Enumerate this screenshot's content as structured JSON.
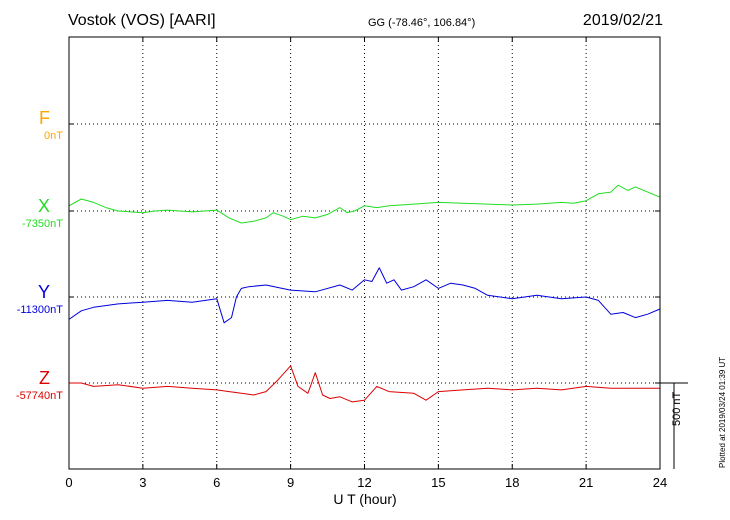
{
  "header": {
    "station": "Vostok (VOS)  [AARI]",
    "coords": "GG (-78.46°, 106.84°)",
    "date": "2019/02/21"
  },
  "xlabel": "U T (hour)",
  "scale_label": "500 nT",
  "footer": "Plotted at 2019/03/24 01:39 UT",
  "chart_data": {
    "type": "line",
    "title": "Vostok (VOS)  [AARI]",
    "xlabel": "U T (hour)",
    "ylabel": "",
    "xlim": [
      0,
      24
    ],
    "xticks": [
      "0",
      "3",
      "6",
      "9",
      "12",
      "15",
      "18",
      "21",
      "24"
    ],
    "scale_bar_nT": 500,
    "grid": true,
    "series": [
      {
        "name": "F",
        "baseline_label": "0nT",
        "color": "#ffa500",
        "x": [],
        "y": []
      },
      {
        "name": "X",
        "baseline_label": "-7350nT",
        "color": "#22dd22",
        "x": [
          0,
          0.5,
          1,
          1.5,
          2,
          3,
          3.5,
          4,
          5,
          6,
          6.5,
          7,
          7.5,
          8,
          8.3,
          8.7,
          9,
          9.5,
          10,
          10.5,
          11,
          11.3,
          11.6,
          12,
          12.5,
          13,
          14,
          15,
          16,
          17,
          18,
          19,
          20,
          20.5,
          21,
          21.5,
          22,
          22.3,
          22.7,
          23,
          23.5,
          24
        ],
        "y": [
          -7320,
          -7280,
          -7300,
          -7330,
          -7350,
          -7360,
          -7350,
          -7345,
          -7355,
          -7345,
          -7390,
          -7420,
          -7410,
          -7390,
          -7360,
          -7380,
          -7400,
          -7380,
          -7390,
          -7370,
          -7330,
          -7360,
          -7350,
          -7320,
          -7330,
          -7320,
          -7310,
          -7300,
          -7305,
          -7310,
          -7315,
          -7310,
          -7300,
          -7305,
          -7290,
          -7250,
          -7240,
          -7200,
          -7230,
          -7210,
          -7240,
          -7270
        ]
      },
      {
        "name": "Y",
        "baseline_label": "-11300nT",
        "color": "#0000dd",
        "x": [
          0,
          0.5,
          1,
          2,
          3,
          4,
          5,
          6,
          6.3,
          6.6,
          6.8,
          7,
          7.3,
          8,
          9,
          10,
          11,
          11.5,
          12,
          12.3,
          12.6,
          12.9,
          13.2,
          13.5,
          14,
          14.5,
          15,
          15.5,
          16,
          16.5,
          17,
          18,
          19,
          20,
          21,
          21.5,
          22,
          22.5,
          23,
          23.5,
          24
        ],
        "y": [
          -11430,
          -11380,
          -11360,
          -11340,
          -11330,
          -11320,
          -11330,
          -11310,
          -11450,
          -11420,
          -11300,
          -11250,
          -11240,
          -11230,
          -11260,
          -11270,
          -11230,
          -11260,
          -11200,
          -11210,
          -11130,
          -11220,
          -11200,
          -11260,
          -11240,
          -11200,
          -11250,
          -11220,
          -11230,
          -11250,
          -11290,
          -11310,
          -11290,
          -11310,
          -11300,
          -11320,
          -11400,
          -11390,
          -11420,
          -11400,
          -11370
        ]
      },
      {
        "name": "Z",
        "baseline_label": "-57740nT",
        "color": "#dd0000",
        "x": [
          0,
          0.5,
          1,
          2,
          3,
          4,
          5,
          6,
          6.5,
          7,
          7.5,
          8,
          8.5,
          9,
          9.3,
          9.7,
          10,
          10.3,
          10.6,
          11,
          11.5,
          12,
          12.5,
          13,
          14,
          14.5,
          15,
          16,
          17,
          18,
          19,
          20,
          21,
          22,
          23,
          24
        ],
        "y": [
          -57740,
          -57740,
          -57760,
          -57750,
          -57770,
          -57760,
          -57770,
          -57780,
          -57790,
          -57800,
          -57810,
          -57790,
          -57720,
          -57640,
          -57760,
          -57800,
          -57680,
          -57810,
          -57830,
          -57820,
          -57850,
          -57840,
          -57760,
          -57790,
          -57800,
          -57840,
          -57790,
          -57780,
          -57770,
          -57780,
          -57770,
          -57780,
          -57760,
          -57770,
          -57770,
          -57770
        ]
      }
    ]
  }
}
